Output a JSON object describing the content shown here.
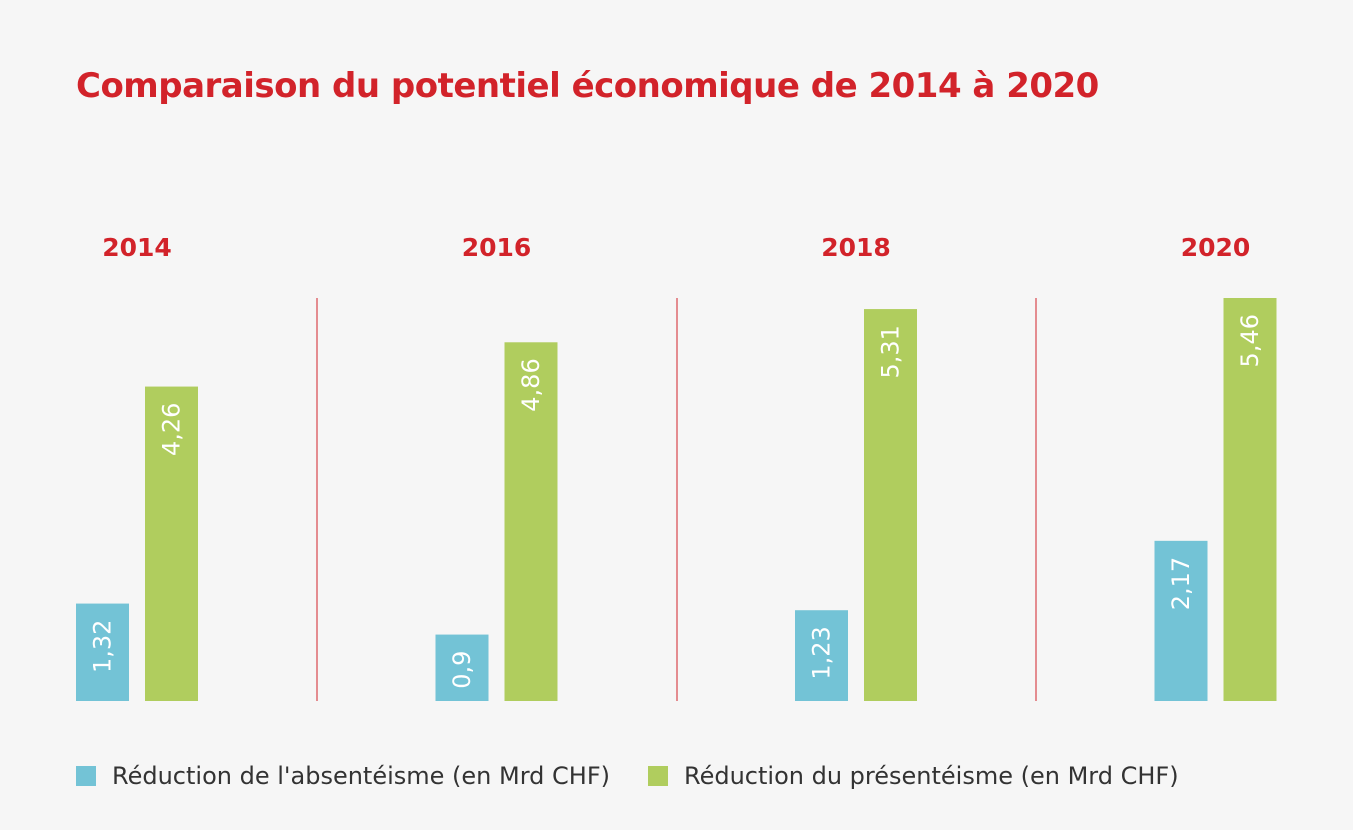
{
  "chart_data": {
    "type": "bar",
    "title": "Comparaison du potentiel économique de 2014 à 2020",
    "categories": [
      "2014",
      "2016",
      "2018",
      "2020"
    ],
    "series": [
      {
        "name": "Réduction de l'absentéisme (en Mrd CHF)",
        "values": [
          1.32,
          0.9,
          1.23,
          2.17
        ],
        "labels": [
          "1,32",
          "0,9",
          "1,23",
          "2,17"
        ],
        "color": "#73c3d6"
      },
      {
        "name": "Réduction du présentéisme (en Mrd CHF)",
        "values": [
          4.26,
          4.86,
          5.31,
          5.46
        ],
        "labels": [
          "4,26",
          "4,86",
          "5,31",
          "5,46"
        ],
        "color": "#b0cd5e"
      }
    ],
    "ylim": [
      0,
      5.46
    ],
    "grid": false,
    "legend_position": "bottom",
    "separator_color": "#d2232a",
    "title_color": "#d2232a"
  }
}
